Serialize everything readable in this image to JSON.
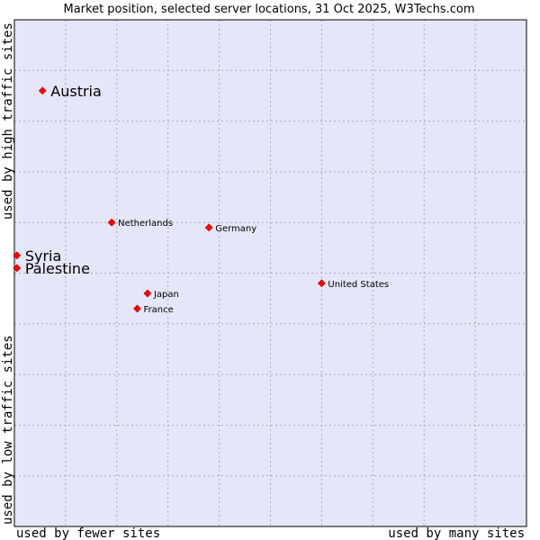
{
  "chart_data": {
    "type": "scatter",
    "title": "Market position, selected server locations, 31 Oct 2025, W3Techs.com",
    "xlabel_left": "used by fewer sites",
    "xlabel_right": "used by many sites",
    "ylabel_bottom": "used by low traffic sites",
    "ylabel_top": "used by high traffic sites",
    "xlim": [
      0,
      10
    ],
    "ylim": [
      0,
      10
    ],
    "grid": true,
    "colors": {
      "background": "#e6e6fa",
      "grid": "#aaaaaa",
      "point": "#ff0000",
      "frame": "#000000"
    },
    "points": [
      {
        "label": "Austria",
        "x": 0.55,
        "y": 8.6,
        "emphasis": true
      },
      {
        "label": "Netherlands",
        "x": 1.9,
        "y": 6.0,
        "emphasis": false
      },
      {
        "label": "Germany",
        "x": 3.8,
        "y": 5.9,
        "emphasis": false
      },
      {
        "label": "Syria",
        "x": 0.05,
        "y": 5.35,
        "emphasis": true
      },
      {
        "label": "Palestine",
        "x": 0.05,
        "y": 5.1,
        "emphasis": true
      },
      {
        "label": "United States",
        "x": 6.0,
        "y": 4.8,
        "emphasis": false
      },
      {
        "label": "Japan",
        "x": 2.6,
        "y": 4.6,
        "emphasis": false
      },
      {
        "label": "France",
        "x": 2.4,
        "y": 4.3,
        "emphasis": false
      }
    ]
  }
}
